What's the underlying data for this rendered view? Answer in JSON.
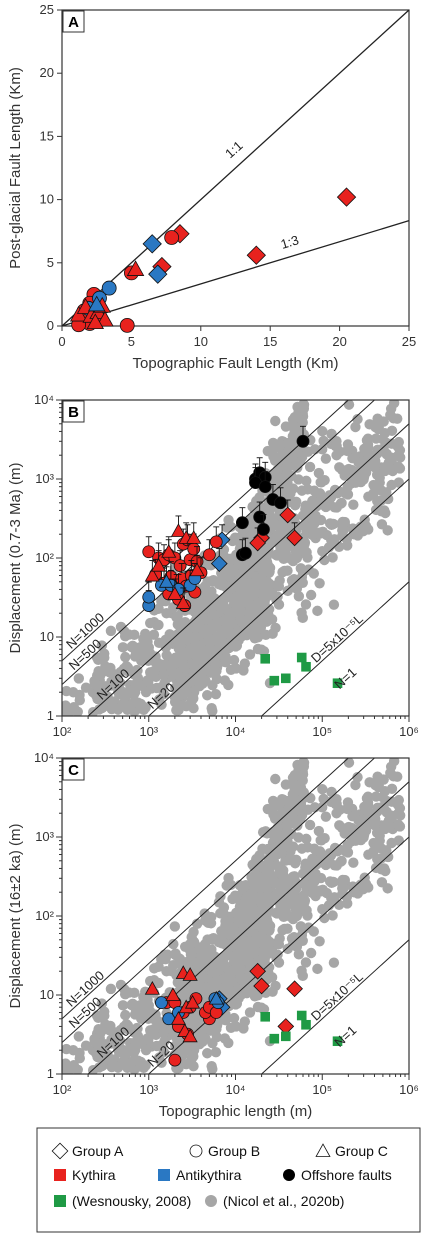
{
  "colors": {
    "kythira": "#e8221e",
    "antikythira": "#2a78c3",
    "offshore": "#000000",
    "wesnousky": "#1f9a45",
    "nicol": "#a6a6a6"
  },
  "chart_data": [
    {
      "panel": "A",
      "type": "scatter",
      "xlabel": "Topographic Fault Length (Km)",
      "ylabel": "Post-glacial Fault Length (Km)",
      "xlim": [
        0,
        25
      ],
      "ylim": [
        0,
        25
      ],
      "xticks": [
        "0",
        "5",
        "10",
        "15",
        "20",
        "25"
      ],
      "yticks": [
        "0",
        "5",
        "10",
        "15",
        "20",
        "25"
      ],
      "reference_lines": [
        {
          "label": "1:1",
          "slope": 1
        },
        {
          "label": "1:3",
          "slope": 0.3333
        }
      ],
      "series": [
        {
          "group": "Group A",
          "region": "Kythira",
          "marker": "diamond",
          "points": [
            [
              20.5,
              10.2
            ],
            [
              14,
              5.6
            ],
            [
              8.5,
              7.3
            ],
            [
              7.2,
              4.7
            ]
          ]
        },
        {
          "group": "Group A",
          "region": "Antikythira",
          "marker": "diamond",
          "points": [
            [
              6.5,
              6.5
            ],
            [
              6.9,
              4.1
            ]
          ]
        },
        {
          "group": "Group B",
          "region": "Kythira",
          "marker": "circle",
          "points": [
            [
              7.9,
              7.0
            ],
            [
              5.0,
              4.2
            ],
            [
              2.3,
              2.5
            ],
            [
              2.0,
              1.8
            ],
            [
              1.6,
              1.2
            ],
            [
              1.5,
              0.6
            ],
            [
              2.0,
              0.2
            ],
            [
              2.6,
              0.4
            ],
            [
              1.2,
              0.1
            ],
            [
              4.7,
              0.05
            ]
          ]
        },
        {
          "group": "Group B",
          "region": "Antikythira",
          "marker": "circle",
          "points": [
            [
              3.4,
              3.0
            ],
            [
              2.7,
              2.2
            ],
            [
              1.9,
              1.4
            ]
          ]
        },
        {
          "group": "Group C",
          "region": "Kythira",
          "marker": "triangle",
          "points": [
            [
              5.3,
              4.5
            ],
            [
              1.2,
              0.9
            ],
            [
              1.7,
              1.5
            ],
            [
              2.1,
              0.8
            ],
            [
              2.6,
              1.1
            ],
            [
              2.9,
              1.6
            ],
            [
              3.1,
              0.5
            ],
            [
              2.4,
              0.3
            ]
          ]
        },
        {
          "group": "Group C",
          "region": "Antikythira",
          "marker": "triangle",
          "points": [
            [
              2.5,
              1.7
            ]
          ]
        }
      ]
    },
    {
      "panel": "B",
      "type": "scatter",
      "scale": "log-log",
      "xlabel": "",
      "ylabel": "Displacement (0.7-3 Ma) (m)",
      "xlim": [
        100,
        1000000
      ],
      "ylim": [
        1,
        10000
      ],
      "xticks": [
        "10²",
        "10³",
        "10⁴",
        "10⁵",
        "10⁶"
      ],
      "yticks": [
        "1",
        "10",
        "10²",
        "10³",
        "10⁴"
      ],
      "reference_lines": [
        {
          "label": "N=1000",
          "coef": 0.05
        },
        {
          "label": "N=500",
          "coef": 0.025
        },
        {
          "label": "N=100",
          "coef": 0.005
        },
        {
          "label": "N=20",
          "coef": 0.001
        },
        {
          "label": "D=5x10⁻⁵L",
          "coef": 5e-05
        },
        {
          "label": "N=1"
        }
      ],
      "series": [
        {
          "group": "Group A",
          "region": "Kythira",
          "marker": "diamond",
          "points": [
            [
              20000,
              180
            ],
            [
              18000,
              155
            ],
            [
              40000,
              350
            ],
            [
              48000,
              180
            ]
          ]
        },
        {
          "group": "Group A",
          "region": "Antikythira",
          "marker": "diamond",
          "points": [
            [
              7000,
              170
            ],
            [
              6500,
              85
            ]
          ]
        },
        {
          "group": "Group B",
          "region": "Kythira",
          "marker": "circle",
          "points": [
            [
              1000,
              120
            ],
            [
              1300,
              100
            ],
            [
              1500,
              95
            ],
            [
              1700,
              110
            ],
            [
              2000,
              100
            ],
            [
              2300,
              80
            ],
            [
              2500,
              150
            ],
            [
              2800,
              170
            ],
            [
              3000,
              95
            ],
            [
              3300,
              130
            ],
            [
              3600,
              90
            ],
            [
              4000,
              65
            ],
            [
              5000,
              110
            ],
            [
              6000,
              160
            ],
            [
              1200,
              62
            ],
            [
              1500,
              48
            ],
            [
              1800,
              58
            ],
            [
              2100,
              40
            ],
            [
              2400,
              55
            ],
            [
              2700,
              44
            ],
            [
              3100,
              60
            ],
            [
              3400,
              37
            ],
            [
              1700,
              35
            ],
            [
              2200,
              30
            ],
            [
              2600,
              25
            ]
          ]
        },
        {
          "group": "Group B",
          "region": "Antikythira",
          "marker": "circle",
          "points": [
            [
              1000,
              25
            ],
            [
              1000,
              32
            ],
            [
              1400,
              45
            ],
            [
              1800,
              45
            ],
            [
              2200,
              40
            ],
            [
              3000,
              45
            ],
            [
              3400,
              55
            ]
          ]
        },
        {
          "group": "Group C",
          "region": "Kythira",
          "marker": "triangle",
          "points": [
            [
              2200,
              220
            ],
            [
              2700,
              180
            ],
            [
              1700,
              120
            ],
            [
              3300,
              180
            ],
            [
              1100,
              60
            ],
            [
              1300,
              80
            ],
            [
              3600,
              70
            ],
            [
              2000,
              35
            ],
            [
              2500,
              27
            ]
          ]
        },
        {
          "group": "Group C",
          "region": "Antikythira",
          "marker": "triangle",
          "points": [
            [
              1600,
              50
            ]
          ]
        },
        {
          "group": "Offshore faults",
          "region": "Offshore",
          "marker": "circle",
          "points": [
            [
              12000,
              280
            ],
            [
              12000,
              110
            ],
            [
              13000,
              115
            ],
            [
              17000,
              1000
            ],
            [
              19000,
              1200
            ],
            [
              22000,
              1050
            ],
            [
              19000,
              330
            ],
            [
              21000,
              230
            ],
            [
              17000,
              900
            ],
            [
              22000,
              800
            ],
            [
              27000,
              550
            ],
            [
              33000,
              500
            ],
            [
              60000,
              3000
            ]
          ]
        },
        {
          "group": "(Wesnousky, 2008)",
          "region": "",
          "marker": "square",
          "points": [
            [
              22000,
              5.3
            ],
            [
              28000,
              2.8
            ],
            [
              38000,
              3.0
            ],
            [
              58000,
              5.5
            ],
            [
              65000,
              4.2
            ],
            [
              150000,
              2.6
            ]
          ]
        }
      ]
    },
    {
      "panel": "C",
      "type": "scatter",
      "scale": "log-log",
      "xlabel": "Topographic length (m)",
      "ylabel": "Displacement (16±2 ka) (m)",
      "xlim": [
        100,
        1000000
      ],
      "ylim": [
        1,
        10000
      ],
      "xticks": [
        "10²",
        "10³",
        "10⁴",
        "10⁵",
        "10⁶"
      ],
      "yticks": [
        "1",
        "10",
        "10²",
        "10³",
        "10⁴"
      ],
      "reference_lines": [
        {
          "label": "N=1000",
          "coef": 0.05
        },
        {
          "label": "N=500",
          "coef": 0.025
        },
        {
          "label": "N=100",
          "coef": 0.005
        },
        {
          "label": "N=20",
          "coef": 0.001
        },
        {
          "label": "D=5x10⁻⁵L",
          "coef": 5e-05
        },
        {
          "label": "N=1"
        }
      ],
      "series": [
        {
          "group": "Group A",
          "region": "Kythira",
          "marker": "diamond",
          "points": [
            [
              18000,
              20
            ],
            [
              20000,
              13
            ],
            [
              38000,
              4
            ],
            [
              48000,
              12
            ]
          ]
        },
        {
          "group": "Group A",
          "region": "Antikythira",
          "marker": "diamond",
          "points": [
            [
              6500,
              9
            ],
            [
              7000,
              7
            ]
          ]
        },
        {
          "group": "Group B",
          "region": "Kythira",
          "marker": "circle",
          "points": [
            [
              2000,
              1.5
            ],
            [
              2200,
              4
            ],
            [
              2500,
              6
            ],
            [
              3000,
              7
            ],
            [
              3500,
              9
            ],
            [
              5000,
              5
            ],
            [
              1600,
              8
            ],
            [
              2000,
              8
            ],
            [
              2800,
              3.2
            ],
            [
              4500,
              6
            ],
            [
              5000,
              7
            ],
            [
              6000,
              6
            ]
          ]
        },
        {
          "group": "Group B",
          "region": "Antikythira",
          "marker": "circle",
          "points": [
            [
              1400,
              8
            ],
            [
              1700,
              5
            ],
            [
              2200,
              6
            ],
            [
              5800,
              9
            ],
            [
              6300,
              8
            ]
          ]
        },
        {
          "group": "Group C",
          "region": "Kythira",
          "marker": "triangle",
          "points": [
            [
              1100,
              12
            ],
            [
              2500,
              19
            ],
            [
              3000,
              18
            ],
            [
              1900,
              10
            ],
            [
              2700,
              7
            ],
            [
              3200,
              8
            ],
            [
              2600,
              3.5
            ],
            [
              3000,
              3
            ],
            [
              2200,
              5
            ]
          ]
        },
        {
          "group": "Group C",
          "region": "Antikythira",
          "marker": "triangle",
          "points": [
            [
              6000,
              9
            ]
          ]
        },
        {
          "group": "(Wesnousky, 2008)",
          "region": "",
          "marker": "square",
          "points": [
            [
              22000,
              5.3
            ],
            [
              28000,
              2.8
            ],
            [
              38000,
              3.0
            ],
            [
              58000,
              5.5
            ],
            [
              65000,
              4.2
            ],
            [
              150000,
              2.6
            ]
          ]
        }
      ]
    }
  ],
  "legend": {
    "items": [
      {
        "label": "Group A",
        "symbol": "diamond-open"
      },
      {
        "label": "Group B",
        "symbol": "circle-open"
      },
      {
        "label": "Group C",
        "symbol": "triangle-open"
      },
      {
        "label": "Kythira",
        "symbol": "square-kythira"
      },
      {
        "label": "Antikythira",
        "symbol": "square-antikythira"
      },
      {
        "label": "Offshore faults",
        "symbol": "circle-offshore"
      },
      {
        "label": "(Wesnousky, 2008)",
        "symbol": "square-wesnousky"
      },
      {
        "label": "(Nicol et al., 2020b)",
        "symbol": "circle-nicol"
      }
    ]
  }
}
